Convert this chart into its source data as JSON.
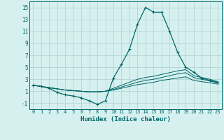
{
  "xlabel": "Humidex (Indice chaleur)",
  "bg_color": "#d6f0f0",
  "grid_color": "#b8d8d8",
  "line_color": "#006666",
  "xlim": [
    -0.5,
    23.5
  ],
  "ylim": [
    -2,
    16
  ],
  "xticks": [
    0,
    1,
    2,
    3,
    4,
    5,
    6,
    7,
    8,
    9,
    10,
    11,
    12,
    13,
    14,
    15,
    16,
    17,
    18,
    19,
    20,
    21,
    22,
    23
  ],
  "yticks": [
    -1,
    1,
    3,
    5,
    7,
    9,
    11,
    13,
    15
  ],
  "main_series": [
    2.0,
    1.8,
    1.5,
    0.8,
    0.4,
    0.2,
    -0.1,
    -0.6,
    -1.2,
    -0.6,
    3.2,
    5.5,
    8.0,
    12.2,
    15.0,
    14.2,
    14.2,
    11.0,
    7.5,
    5.0,
    4.2,
    3.2,
    2.8,
    2.5
  ],
  "flat_lines": [
    [
      2.0,
      1.8,
      1.6,
      1.4,
      1.2,
      1.1,
      1.0,
      0.9,
      0.9,
      1.0,
      1.2,
      1.5,
      1.8,
      2.1,
      2.3,
      2.5,
      2.8,
      3.0,
      3.2,
      3.4,
      2.8,
      2.6,
      2.4,
      2.2
    ],
    [
      2.0,
      1.8,
      1.6,
      1.4,
      1.2,
      1.1,
      1.0,
      0.9,
      0.9,
      1.0,
      1.3,
      1.7,
      2.1,
      2.5,
      2.8,
      3.0,
      3.3,
      3.6,
      3.9,
      4.1,
      3.3,
      3.0,
      2.7,
      2.4
    ],
    [
      2.0,
      1.8,
      1.6,
      1.4,
      1.2,
      1.1,
      1.0,
      0.9,
      0.9,
      1.0,
      1.5,
      2.0,
      2.5,
      3.0,
      3.3,
      3.5,
      3.8,
      4.1,
      4.4,
      4.6,
      3.6,
      3.3,
      3.0,
      2.6
    ]
  ]
}
